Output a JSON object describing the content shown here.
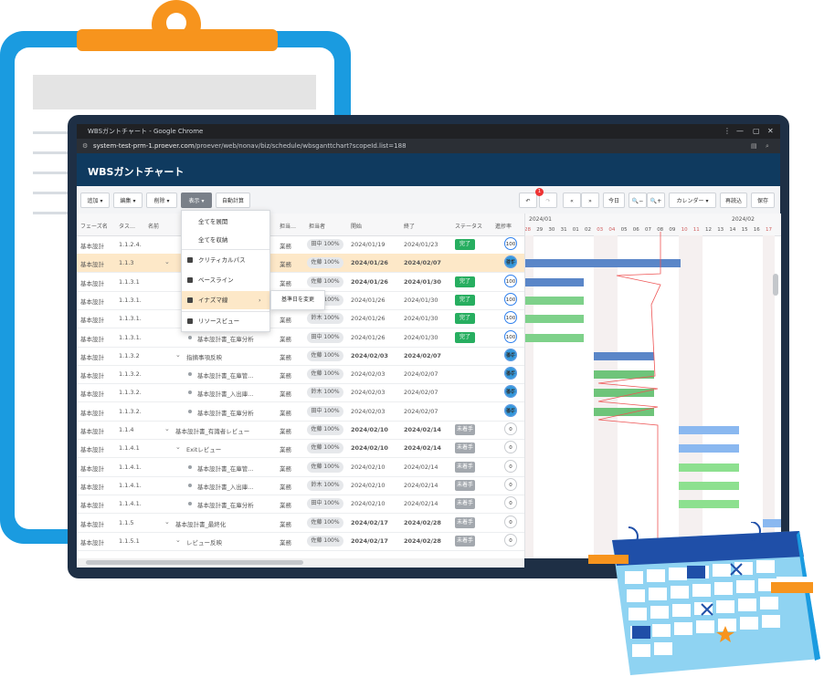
{
  "window": {
    "title": "WBSガントチャート - Google Chrome",
    "url_host": "system-test-prm-1.proever.com",
    "url_path": "/proever/web/nonav/biz/schedule/wbsganttchart?scopeId.list=188"
  },
  "app": {
    "title": "WBSガントチャート"
  },
  "toolbar": {
    "add": "追加 ▾",
    "edit": "編集 ▾",
    "delete": "削除 ▾",
    "view": "表示 ▾",
    "auto_calc": "自動計算",
    "undo": "↶",
    "undo_badge": "1",
    "redo": "↷",
    "prev": "«",
    "next": "»",
    "today": "今日",
    "zoom_out": "🔍−",
    "zoom_in": "🔍+",
    "calendar": "カレンダー ▾",
    "reload": "再読込",
    "save": "保存"
  },
  "grid": {
    "headers": [
      "フェーズ名",
      "タス…",
      "名前",
      "担当…",
      "担当者",
      "開始",
      "終了",
      "ステータス",
      "進捗率"
    ],
    "rows": [
      {
        "phase": "基本設計",
        "task": "1.1.2.4.",
        "name": "",
        "type": "業務",
        "owner": "田中 100%",
        "start": "2024/01/19",
        "end": "2024/01/23",
        "status": "完了",
        "st": "done",
        "progress": "100",
        "bold": false,
        "indent": 0,
        "node": "none"
      },
      {
        "phase": "基本設計",
        "task": "1.1.3",
        "name": "",
        "type": "業務",
        "owner": "佐藤 100%",
        "start": "2024/01/26",
        "end": "2024/02/07",
        "status": "着手",
        "st": "prog",
        "progress": "75",
        "bold": true,
        "indent": 0,
        "node": "chev",
        "sel": true
      },
      {
        "phase": "基本設計",
        "task": "1.1.3.1",
        "name": "",
        "type": "業務",
        "owner": "佐藤 100%",
        "start": "2024/01/26",
        "end": "2024/01/30",
        "status": "完了",
        "st": "done",
        "progress": "100",
        "bold": true,
        "indent": 0,
        "node": "none"
      },
      {
        "phase": "基本設計",
        "task": "1.1.3.1.",
        "name": "",
        "type": "業務",
        "owner": "佐藤 100%",
        "start": "2024/01/26",
        "end": "2024/01/30",
        "status": "完了",
        "st": "done",
        "progress": "100",
        "bold": false,
        "indent": 0,
        "node": "none"
      },
      {
        "phase": "基本設計",
        "task": "1.1.3.1.",
        "name": "基本設計書_入出庫…",
        "type": "業務",
        "owner": "鈴木 100%",
        "start": "2024/01/26",
        "end": "2024/01/30",
        "status": "完了",
        "st": "done",
        "progress": "100",
        "bold": false,
        "indent": 2,
        "node": "dot"
      },
      {
        "phase": "基本設計",
        "task": "1.1.3.1.",
        "name": "基本設計書_在庫分析",
        "type": "業務",
        "owner": "田中 100%",
        "start": "2024/01/26",
        "end": "2024/01/30",
        "status": "完了",
        "st": "done",
        "progress": "100",
        "bold": false,
        "indent": 2,
        "node": "dot"
      },
      {
        "phase": "基本設計",
        "task": "1.1.3.2",
        "name": "指摘事項反映",
        "type": "業務",
        "owner": "佐藤 100%",
        "start": "2024/02/03",
        "end": "2024/02/07",
        "status": "着手",
        "st": "prog",
        "progress": "50",
        "bold": true,
        "indent": 1,
        "node": "chev"
      },
      {
        "phase": "基本設計",
        "task": "1.1.3.2.",
        "name": "基本設計書_在庫管…",
        "type": "業務",
        "owner": "佐藤 100%",
        "start": "2024/02/03",
        "end": "2024/02/07",
        "status": "着手",
        "st": "prog",
        "progress": "50",
        "bold": false,
        "indent": 2,
        "node": "dot"
      },
      {
        "phase": "基本設計",
        "task": "1.1.3.2.",
        "name": "基本設計書_入出庫…",
        "type": "業務",
        "owner": "鈴木 100%",
        "start": "2024/02/03",
        "end": "2024/02/07",
        "status": "着手",
        "st": "prog",
        "progress": "50",
        "bold": false,
        "indent": 2,
        "node": "dot"
      },
      {
        "phase": "基本設計",
        "task": "1.1.3.2.",
        "name": "基本設計書_在庫分析",
        "type": "業務",
        "owner": "田中 100%",
        "start": "2024/02/03",
        "end": "2024/02/07",
        "status": "着手",
        "st": "prog",
        "progress": "50",
        "bold": false,
        "indent": 2,
        "node": "dot"
      },
      {
        "phase": "基本設計",
        "task": "1.1.4",
        "name": "基本設計書_有識者レビュー",
        "type": "業務",
        "owner": "佐藤 100%",
        "start": "2024/02/10",
        "end": "2024/02/14",
        "status": "未着手",
        "st": "todo",
        "progress": "0",
        "bold": true,
        "indent": 0,
        "node": "chev"
      },
      {
        "phase": "基本設計",
        "task": "1.1.4.1",
        "name": "Exitレビュー",
        "type": "業務",
        "owner": "佐藤 100%",
        "start": "2024/02/10",
        "end": "2024/02/14",
        "status": "未着手",
        "st": "todo",
        "progress": "0",
        "bold": true,
        "indent": 1,
        "node": "chev"
      },
      {
        "phase": "基本設計",
        "task": "1.1.4.1.",
        "name": "基本設計書_在庫管…",
        "type": "業務",
        "owner": "佐藤 100%",
        "start": "2024/02/10",
        "end": "2024/02/14",
        "status": "未着手",
        "st": "todo",
        "progress": "0",
        "bold": false,
        "indent": 2,
        "node": "dot"
      },
      {
        "phase": "基本設計",
        "task": "1.1.4.1.",
        "name": "基本設計書_入出庫…",
        "type": "業務",
        "owner": "鈴木 100%",
        "start": "2024/02/10",
        "end": "2024/02/14",
        "status": "未着手",
        "st": "todo",
        "progress": "0",
        "bold": false,
        "indent": 2,
        "node": "dot"
      },
      {
        "phase": "基本設計",
        "task": "1.1.4.1.",
        "name": "基本設計書_在庫分析",
        "type": "業務",
        "owner": "田中 100%",
        "start": "2024/02/10",
        "end": "2024/02/14",
        "status": "未着手",
        "st": "todo",
        "progress": "0",
        "bold": false,
        "indent": 2,
        "node": "dot"
      },
      {
        "phase": "基本設計",
        "task": "1.1.5",
        "name": "基本設計書_最終化",
        "type": "業務",
        "owner": "佐藤 100%",
        "start": "2024/02/17",
        "end": "2024/02/28",
        "status": "未着手",
        "st": "todo",
        "progress": "0",
        "bold": true,
        "indent": 0,
        "node": "chev"
      },
      {
        "phase": "基本設計",
        "task": "1.1.5.1",
        "name": "レビュー反映",
        "type": "業務",
        "owner": "佐藤 100%",
        "start": "2024/02/17",
        "end": "2024/02/28",
        "status": "未着手",
        "st": "todo",
        "progress": "0",
        "bold": true,
        "indent": 1,
        "node": "chev"
      }
    ]
  },
  "view_menu": {
    "items": [
      {
        "label": "全てを展開",
        "check": false
      },
      {
        "label": "全てを収納",
        "check": false
      },
      {
        "label": "クリティカルパス",
        "check": true
      },
      {
        "label": "ベースライン",
        "check": true
      },
      {
        "label": "イナズマ線",
        "check": true,
        "submenu": true
      },
      {
        "label": "リソースビュー",
        "check": true
      }
    ],
    "submenu_item": "基準日を変更"
  },
  "gantt": {
    "months": [
      {
        "label": "2024/01"
      },
      {
        "label": "2024/02"
      }
    ],
    "days": [
      "28",
      "29",
      "30",
      "31",
      "01",
      "02",
      "03",
      "04",
      "05",
      "06",
      "07",
      "08",
      "09",
      "10",
      "11",
      "12",
      "13",
      "14",
      "15",
      "16",
      "17"
    ],
    "weekend_days": [
      "28",
      "03",
      "04",
      "10",
      "11",
      "17"
    ],
    "accent_done": "#7ed18a",
    "accent_plan": "#5a86c8"
  },
  "colors": {
    "header": "#0f3a5f",
    "clipboard": "#1a9be0",
    "clamp": "#f7941d",
    "calendar": "#1f4fa8"
  }
}
